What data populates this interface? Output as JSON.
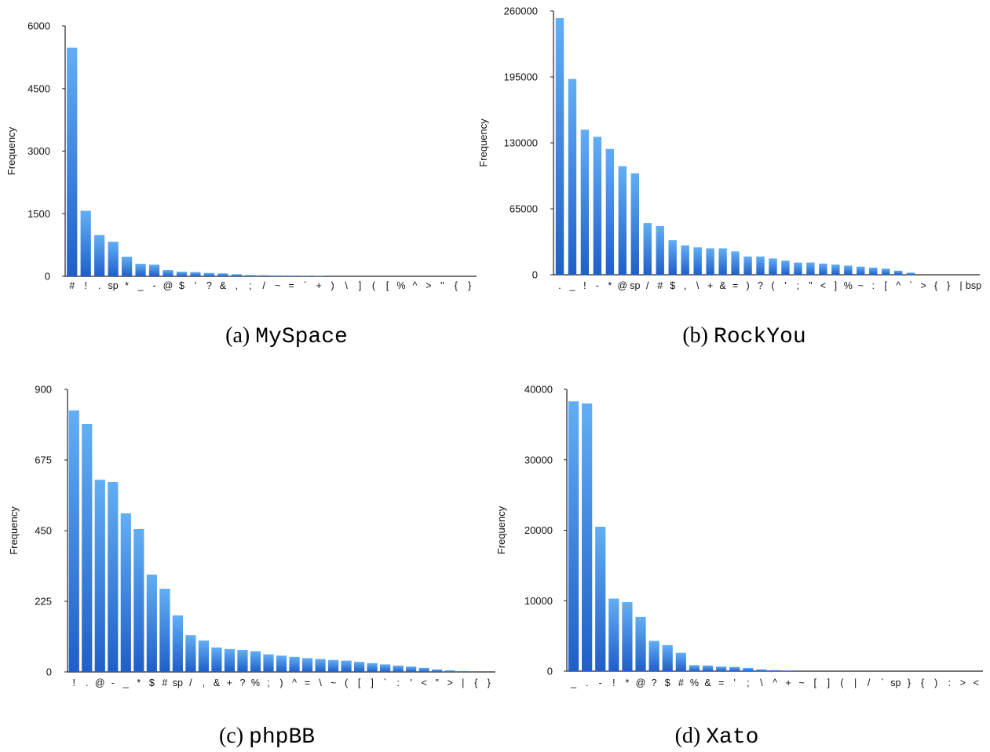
{
  "colors": {
    "bar_top": "#62aef5",
    "bar_bottom": "#1f5fc8",
    "axis": "#222222"
  },
  "chart_data": [
    {
      "type": "bar",
      "caption": {
        "letter": "(a)",
        "name": "MySpace"
      },
      "ylabel": "Frequency",
      "ylim": [
        0,
        6000
      ],
      "yticks": [
        0,
        1500,
        3000,
        4500,
        6000
      ],
      "yticklabels": [
        "0",
        "1500",
        "3000",
        "4500",
        "6000"
      ],
      "categories": [
        "#",
        "!",
        ".",
        "sp",
        "*",
        "_",
        "-",
        "@",
        "$",
        "'",
        "?",
        "&",
        ",",
        ";",
        "/",
        "~",
        "=",
        "`",
        "+",
        ")",
        "\\",
        "]",
        "(",
        "[",
        "%",
        "^",
        ">",
        "\"",
        "{",
        "}"
      ],
      "values": [
        5480,
        1570,
        990,
        830,
        470,
        300,
        280,
        150,
        110,
        100,
        80,
        70,
        50,
        30,
        25,
        20,
        18,
        15,
        12,
        0,
        0,
        0,
        0,
        0,
        0,
        0,
        0,
        0,
        0,
        0
      ]
    },
    {
      "type": "bar",
      "caption": {
        "letter": "(b)",
        "name": "RockYou"
      },
      "ylabel": "Frequency",
      "ylim": [
        0,
        260000
      ],
      "yticks": [
        0,
        65000,
        130000,
        195000,
        260000
      ],
      "yticklabels": [
        "0",
        "65000",
        "130000",
        "195000",
        "260000"
      ],
      "categories": [
        ".",
        "_",
        "!",
        "-",
        "*",
        "@",
        "sp",
        "/",
        "#",
        "$",
        ",",
        "\\",
        "+",
        "&",
        "=",
        ")",
        "?",
        "(",
        "'",
        ";",
        "\"",
        "<",
        "]",
        "%",
        "~",
        ":",
        "[",
        "^",
        "`",
        ">",
        "{",
        "}",
        "|",
        "bsp"
      ],
      "values": [
        253000,
        193000,
        143000,
        136000,
        124000,
        107000,
        100000,
        51000,
        48000,
        34000,
        29000,
        27000,
        26000,
        26000,
        23000,
        18000,
        18000,
        16000,
        14000,
        12000,
        12000,
        11000,
        10000,
        9000,
        8000,
        7000,
        6000,
        4000,
        2000,
        0,
        0,
        0,
        0,
        0
      ]
    },
    {
      "type": "bar",
      "caption": {
        "letter": "(c)",
        "name": "phpBB"
      },
      "ylabel": "Frequency",
      "ylim": [
        0,
        900
      ],
      "yticks": [
        0,
        225,
        450,
        675,
        900
      ],
      "yticklabels": [
        "0",
        "225",
        "450",
        "675",
        "900"
      ],
      "categories": [
        "!",
        ".",
        "@",
        "-",
        "_",
        "*",
        "$",
        "#",
        "sp",
        "/",
        ",",
        "&",
        "+",
        "?",
        "%",
        ";",
        ")",
        "^",
        "=",
        "\\",
        "~",
        "(",
        "[",
        "]",
        "`",
        ":",
        "'",
        "<",
        "\"",
        ">",
        "|",
        "{",
        "}"
      ],
      "values": [
        833,
        790,
        612,
        605,
        505,
        455,
        310,
        265,
        180,
        117,
        100,
        78,
        73,
        70,
        66,
        56,
        52,
        48,
        44,
        41,
        38,
        36,
        32,
        28,
        24,
        20,
        17,
        13,
        8,
        5,
        3,
        0,
        0
      ]
    },
    {
      "type": "bar",
      "caption": {
        "letter": "(d)",
        "name": "Xato"
      },
      "ylabel": "Frequency",
      "ylim": [
        0,
        40000
      ],
      "yticks": [
        0,
        10000,
        20000,
        30000,
        40000
      ],
      "yticklabels": [
        "0",
        "10000",
        "20000",
        "30000",
        "40000"
      ],
      "categories": [
        "_",
        ".",
        "-",
        "!",
        "*",
        "@",
        "?",
        "$",
        "#",
        "%",
        "&",
        "=",
        "'",
        ";",
        "\\",
        "^",
        "+",
        "~",
        "[",
        "]",
        "(",
        "|",
        "/",
        "`",
        "sp",
        "}",
        "{",
        ")",
        ":",
        ">",
        "<"
      ],
      "values": [
        38300,
        38000,
        20500,
        10300,
        9800,
        7700,
        4300,
        3700,
        2600,
        850,
        800,
        650,
        600,
        450,
        250,
        150,
        100,
        0,
        0,
        0,
        0,
        0,
        0,
        0,
        0,
        0,
        0,
        0,
        0,
        0,
        0
      ]
    }
  ]
}
